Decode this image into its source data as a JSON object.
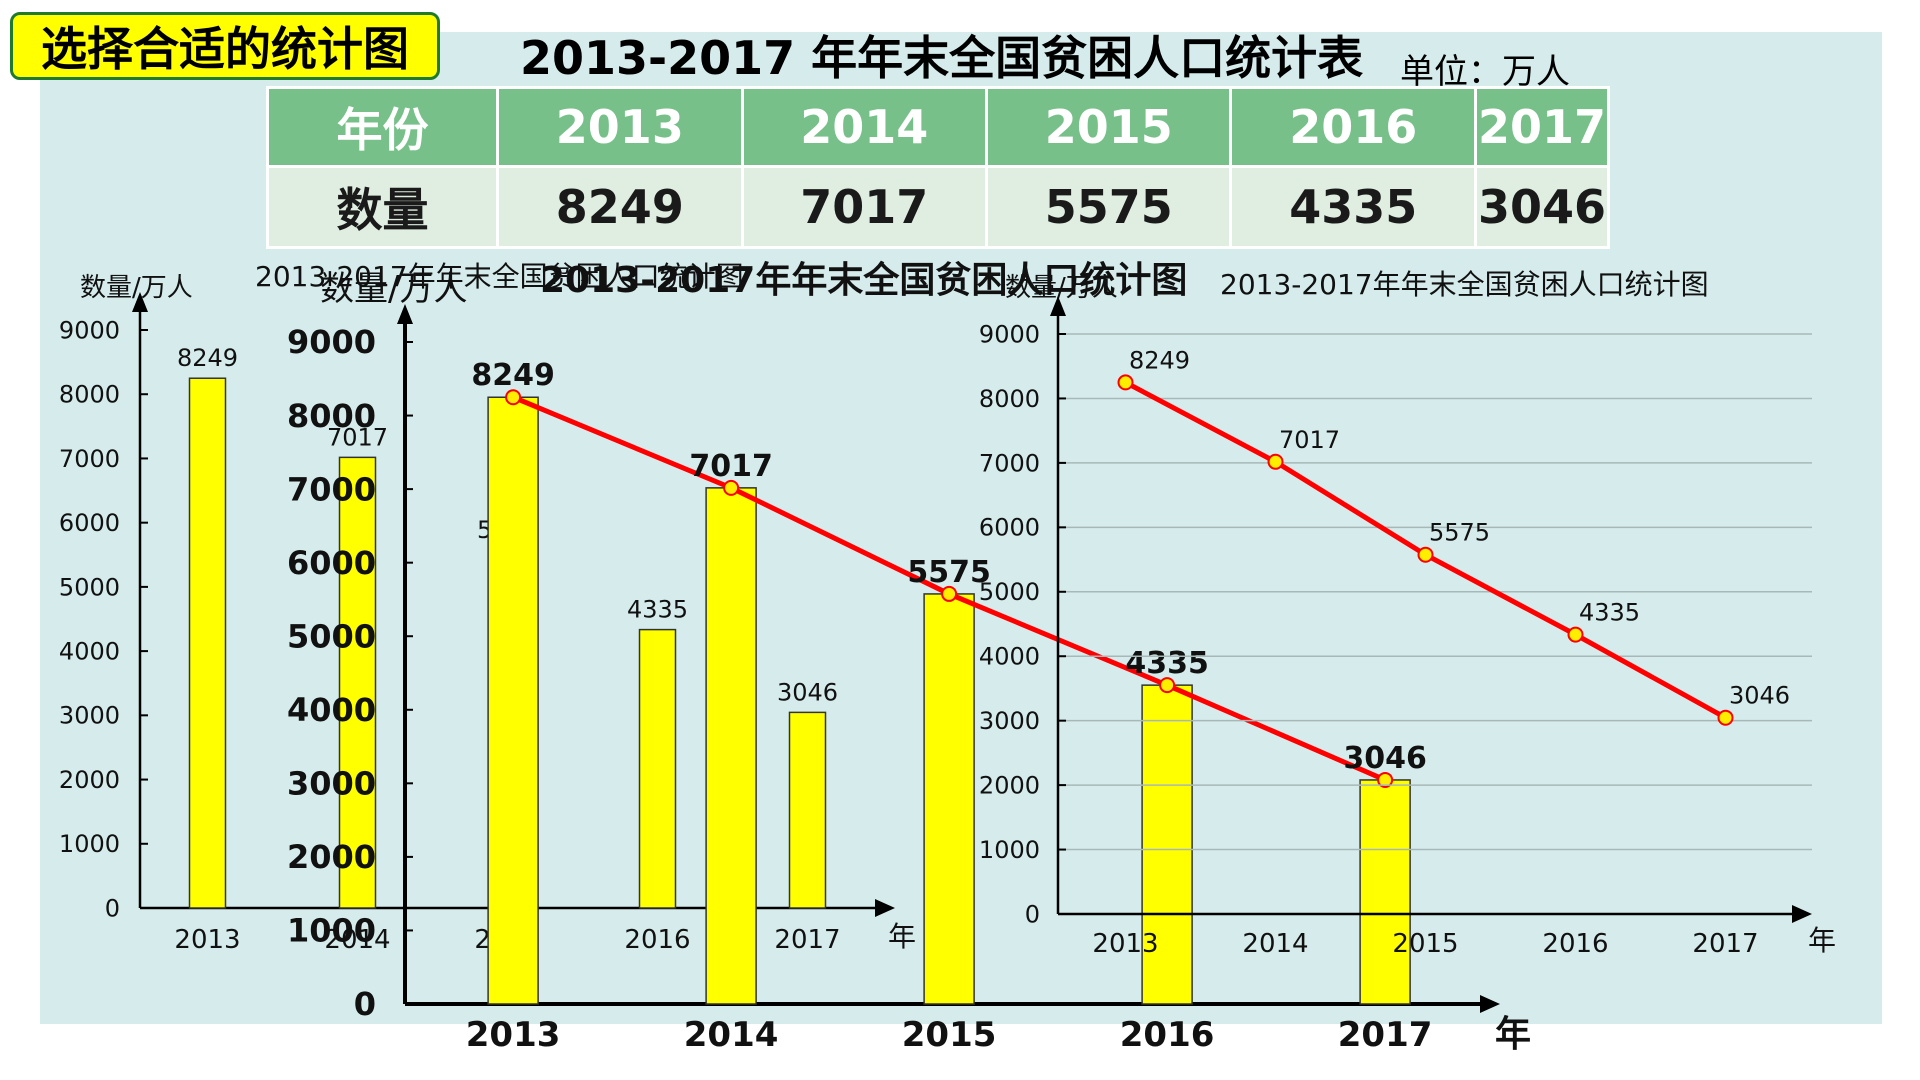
{
  "badge": "选择合适的统计图",
  "title": "2013-2017 年年末全国贫困人口统计表",
  "unit": "单位：万人",
  "table": {
    "header": [
      "年份",
      "2013",
      "2014",
      "2015",
      "2016",
      "2017"
    ],
    "row": [
      "数量",
      "8249",
      "7017",
      "5575",
      "4335",
      "3046"
    ]
  },
  "colors": {
    "bar": "#ffff00",
    "line": "#ff0000",
    "point": "#ffee00",
    "table_head": "#77c08a",
    "table_body": "#dfeee1",
    "panel": "#d6ecec"
  },
  "chart_data": [
    {
      "type": "bar",
      "title": "2013-2017年年末全国贫困人口统计图",
      "ylabel": "数量/万人",
      "xlabel": "年",
      "categories": [
        "2013",
        "2014",
        "2015",
        "2016",
        "2017"
      ],
      "values": [
        8249,
        7017,
        5575,
        4335,
        3046
      ],
      "ylim": [
        0,
        9000
      ],
      "yticks": [
        0,
        1000,
        2000,
        3000,
        4000,
        5000,
        6000,
        7000,
        8000,
        9000
      ]
    },
    {
      "type": "bar",
      "title": "2013-2017年年末全国贫困人口统计图",
      "ylabel": "数量/万人",
      "xlabel": "年",
      "categories": [
        "2013",
        "2014",
        "2015",
        "2016",
        "2017"
      ],
      "values": [
        8249,
        7017,
        5575,
        4335,
        3046
      ],
      "ylim": [
        0,
        9000
      ],
      "yticks": [
        0,
        1000,
        2000,
        3000,
        4000,
        5000,
        6000,
        7000,
        8000,
        9000
      ],
      "line_overlay": true
    },
    {
      "type": "line",
      "title": "2013-2017年年末全国贫困人口统计图",
      "ylabel": "数量/万人",
      "xlabel": "年",
      "categories": [
        "2013",
        "2014",
        "2015",
        "2016",
        "2017"
      ],
      "values": [
        8249,
        7017,
        5575,
        4335,
        3046
      ],
      "ylim": [
        0,
        9000
      ],
      "yticks": [
        0,
        1000,
        2000,
        3000,
        4000,
        5000,
        6000,
        7000,
        8000,
        9000
      ],
      "grid": true
    }
  ]
}
